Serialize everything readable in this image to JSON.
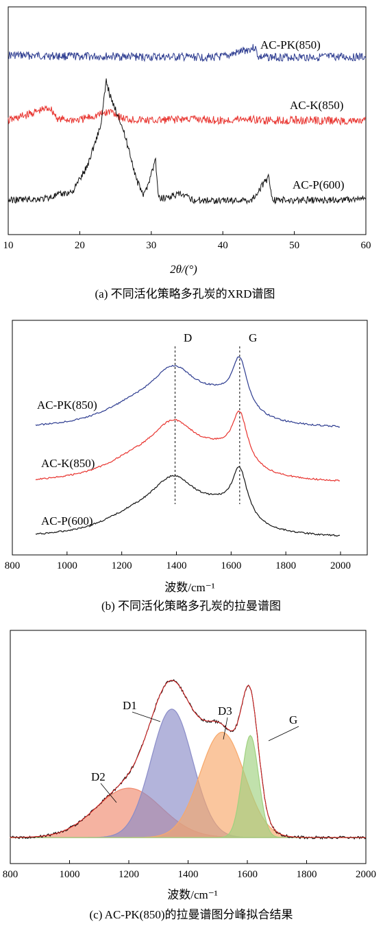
{
  "chart_data": [
    {
      "type": "line",
      "caption": "(a) 不同活化策略多孔炭的XRD谱图",
      "xlabel": "2θ/(°)",
      "xlim": [
        10,
        60
      ],
      "xticks": [
        "10",
        "20",
        "30",
        "40",
        "50",
        "60"
      ],
      "series": [
        {
          "name": "AC-PK(850)",
          "color": "#2b3a8f",
          "points": [
            [
              10,
              0.08
            ],
            [
              15,
              0.07
            ],
            [
              20,
              0.06
            ],
            [
              25,
              0.06
            ],
            [
              30,
              0.05
            ],
            [
              35,
              0.05
            ],
            [
              40,
              0.05
            ],
            [
              44.5,
              0.2
            ],
            [
              45,
              0.05
            ],
            [
              50,
              0.05
            ],
            [
              55,
              0.05
            ],
            [
              60,
              0.05
            ]
          ]
        },
        {
          "name": "AC-K(850)",
          "color": "#e8332e",
          "points": [
            [
              10,
              0.06
            ],
            [
              15.8,
              0.25
            ],
            [
              17,
              0.08
            ],
            [
              20,
              0.07
            ],
            [
              24.5,
              0.2
            ],
            [
              26,
              0.09
            ],
            [
              30,
              0.06
            ],
            [
              35.5,
              0.09
            ],
            [
              40,
              0.06
            ],
            [
              43,
              0.09
            ],
            [
              46,
              0.06
            ],
            [
              50,
              0.07
            ],
            [
              55,
              0.06
            ],
            [
              60,
              0.05
            ]
          ]
        },
        {
          "name": "AC-P(600)",
          "color": "#111111",
          "points": [
            [
              10,
              0.02
            ],
            [
              15,
              0.03
            ],
            [
              19,
              0.08
            ],
            [
              21,
              0.25
            ],
            [
              23,
              0.55
            ],
            [
              23.7,
              0.85
            ],
            [
              24.5,
              0.7
            ],
            [
              25.5,
              0.6
            ],
            [
              27,
              0.35
            ],
            [
              28,
              0.15
            ],
            [
              29,
              0.05
            ],
            [
              30.6,
              0.3
            ],
            [
              31,
              0.03
            ],
            [
              34,
              0.06
            ],
            [
              36,
              0.02
            ],
            [
              40,
              0.02
            ],
            [
              44,
              0.02
            ],
            [
              46.4,
              0.18
            ],
            [
              47,
              0.02
            ],
            [
              50,
              0.02
            ],
            [
              55,
              0.02
            ],
            [
              60,
              0.03
            ]
          ]
        }
      ]
    },
    {
      "type": "line",
      "caption": "(b) 不同活化策略多孔炭的拉曼谱图",
      "xlabel": "波数/cm⁻¹",
      "xlim": [
        800,
        2000
      ],
      "xticks": [
        "800",
        "1000",
        "1200",
        "1400",
        "1600",
        "1800",
        "2000"
      ],
      "annotations": [
        {
          "text": "D",
          "x": 1350
        },
        {
          "text": "G",
          "x": 1605
        }
      ],
      "series": [
        {
          "name": "AC-PK(850)",
          "color": "#2b3a8f"
        },
        {
          "name": "AC-K(850)",
          "color": "#e8332e"
        },
        {
          "name": "AC-P(600)",
          "color": "#111111"
        }
      ]
    },
    {
      "type": "area",
      "caption": "(c) AC-PK(850)的拉曼谱图分峰拟合结果",
      "xlabel": "波数/cm⁻¹",
      "xlim": [
        800,
        2000
      ],
      "xticks": [
        "800",
        "1000",
        "1200",
        "1400",
        "1600",
        "1800",
        "2000"
      ],
      "peaks": [
        {
          "name": "D2",
          "center": 1200,
          "amplitude": 0.3,
          "width": 110,
          "color": "#f08a6e"
        },
        {
          "name": "D1",
          "center": 1345,
          "amplitude": 0.78,
          "width": 70,
          "color": "#8a8cc8"
        },
        {
          "name": "D3",
          "center": 1515,
          "amplitude": 0.64,
          "width": 75,
          "color": "#f7a86a"
        },
        {
          "name": "G",
          "center": 1610,
          "amplitude": 0.62,
          "width": 28,
          "color": "#9fd17f"
        }
      ]
    }
  ]
}
